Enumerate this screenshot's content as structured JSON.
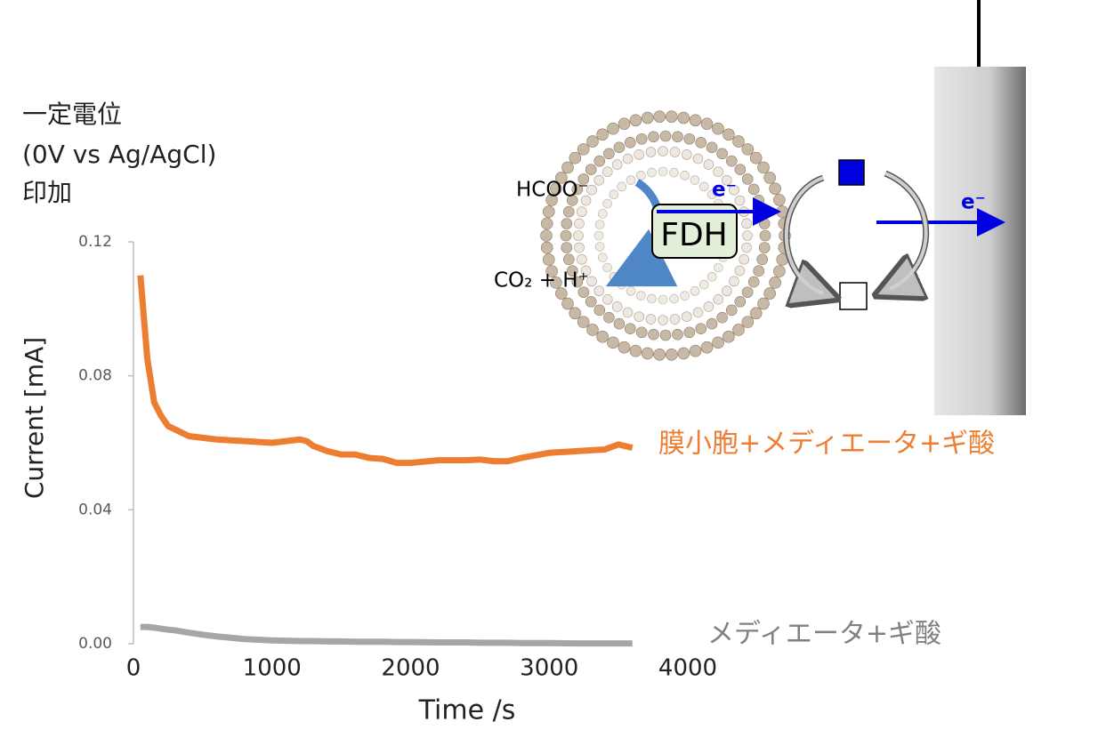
{
  "chart_data": {
    "type": "line",
    "annotations": [
      "一定電位",
      "(0V vs Ag/AgCl)",
      "印加"
    ],
    "x_label": "Time /s",
    "y_label": "Current [mA]",
    "xlim": [
      0,
      4000
    ],
    "xticks": [
      0,
      1000,
      2000,
      3000,
      4000
    ],
    "ylim": [
      0,
      0.12
    ],
    "yticks": [
      {
        "value": 0,
        "label": "0.00"
      },
      {
        "value": 0.04,
        "label": "0.04"
      },
      {
        "value": 0.08,
        "label": "0.08"
      },
      {
        "value": 0.12,
        "label": "0.12"
      }
    ],
    "x": [
      50,
      100,
      150,
      200,
      250,
      300,
      400,
      500,
      600,
      800,
      1000,
      1100,
      1200,
      1250,
      1300,
      1400,
      1500,
      1600,
      1700,
      1800,
      1900,
      2000,
      2200,
      2400,
      2500,
      2600,
      2700,
      2800,
      3000,
      3200,
      3400,
      3500,
      3600
    ],
    "series": [
      {
        "name": "膜小胞+メディエータ+ギ酸",
        "color": "#ed7d31",
        "values": [
          0.11,
          0.085,
          0.072,
          0.068,
          0.065,
          0.064,
          0.062,
          0.0615,
          0.061,
          0.0605,
          0.06,
          0.0605,
          0.061,
          0.0605,
          0.059,
          0.0575,
          0.0565,
          0.0565,
          0.0555,
          0.0552,
          0.054,
          0.054,
          0.0548,
          0.0548,
          0.055,
          0.0545,
          0.0545,
          0.0555,
          0.057,
          0.0575,
          0.058,
          0.0595,
          0.0585
        ]
      },
      {
        "name": "メディエータ+ギ酸",
        "color": "#a6a6a6",
        "values": [
          0.005,
          0.005,
          0.0048,
          0.0045,
          0.0042,
          0.004,
          0.0033,
          0.0027,
          0.0022,
          0.0014,
          0.001,
          0.0009,
          0.0008,
          0.0008,
          0.0008,
          0.0007,
          0.0007,
          0.0006,
          0.0006,
          0.0006,
          0.0005,
          0.0005,
          0.0004,
          0.0004,
          0.0003,
          0.0003,
          0.0003,
          0.0002,
          0.0002,
          0.0001,
          0.0001,
          0.0001,
          0.0001
        ]
      }
    ]
  },
  "diagram": {
    "substrate": "HCOO⁻",
    "product": "CO₂ + H⁺",
    "enzyme": "FDH",
    "electron_inner": "e⁻",
    "electron_outer": "e⁻"
  }
}
